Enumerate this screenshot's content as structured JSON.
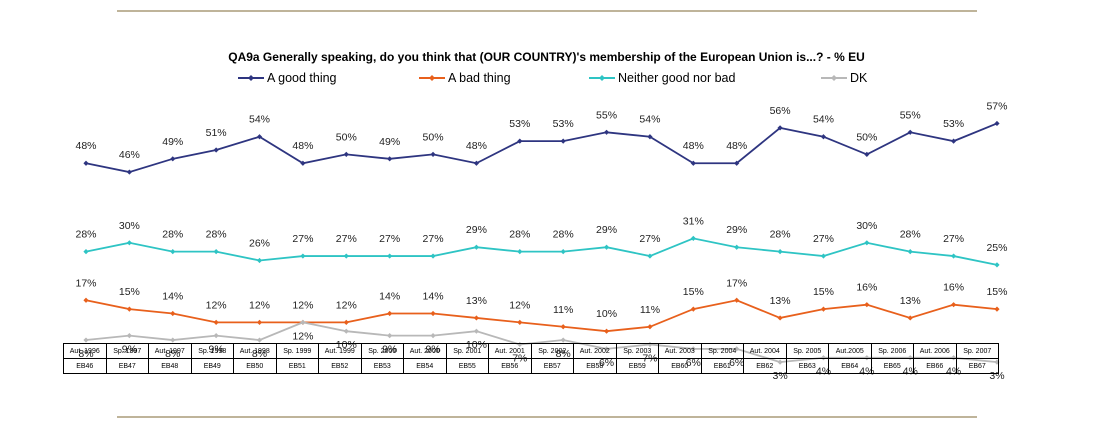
{
  "title": "QA9a Generally speaking, do you think that (OUR COUNTRY)'s membership of the European Union is...? - % EU",
  "chart_data": {
    "type": "line",
    "title": "QA9a Generally speaking, do you think that (OUR COUNTRY)'s membership of the European Union is...? - % EU",
    "categories": [
      "Aut. 1996",
      "Sp. 1997",
      "Aut. 1997",
      "Sp. 1998",
      "Aut. 1998",
      "Sp. 1999",
      "Aut. 1999",
      "Sp. 2000",
      "Aut. 2000",
      "Sp. 2001",
      "Aut. 2001",
      "Sp. 2002",
      "Aut. 2002",
      "Sp. 2003",
      "Aut. 2003",
      "Sp. 2004",
      "Aut. 2004",
      "Sp. 2005",
      "Aut.2005",
      "Sp. 2006",
      "Aut. 2006",
      "Sp. 2007"
    ],
    "codes": [
      "EB46",
      "EB47",
      "EB48",
      "EB49",
      "EB50",
      "EB51",
      "EB52",
      "EB53",
      "EB54",
      "EB55",
      "EB56",
      "EB57",
      "EB58",
      "EB59",
      "EB60",
      "EB61",
      "EB62",
      "EB63",
      "EB64",
      "EB65",
      "EB66",
      "EB67"
    ],
    "series": [
      {
        "name": "A good thing",
        "color": "#2e3580",
        "values": [
          48,
          46,
          49,
          51,
          54,
          48,
          50,
          49,
          50,
          48,
          53,
          53,
          55,
          54,
          48,
          48,
          56,
          54,
          50,
          55,
          53,
          57
        ]
      },
      {
        "name": "A bad thing",
        "color": "#e8601c",
        "values": [
          17,
          15,
          14,
          12,
          12,
          12,
          12,
          14,
          14,
          13,
          12,
          11,
          10,
          11,
          15,
          17,
          13,
          15,
          16,
          13,
          16,
          15
        ]
      },
      {
        "name": "Neither good nor bad",
        "color": "#2ec4c4",
        "values": [
          28,
          30,
          28,
          28,
          26,
          27,
          27,
          27,
          27,
          29,
          28,
          28,
          29,
          27,
          31,
          29,
          28,
          27,
          30,
          28,
          27,
          25
        ]
      },
      {
        "name": "DK",
        "color": "#b8b8b8",
        "values": [
          8,
          9,
          8,
          9,
          8,
          12,
          10,
          9,
          9,
          10,
          7,
          8,
          6,
          7,
          6,
          6,
          3,
          4,
          4,
          4,
          4,
          3
        ]
      }
    ],
    "legend_position": "top",
    "grid": false,
    "unit": "%"
  }
}
